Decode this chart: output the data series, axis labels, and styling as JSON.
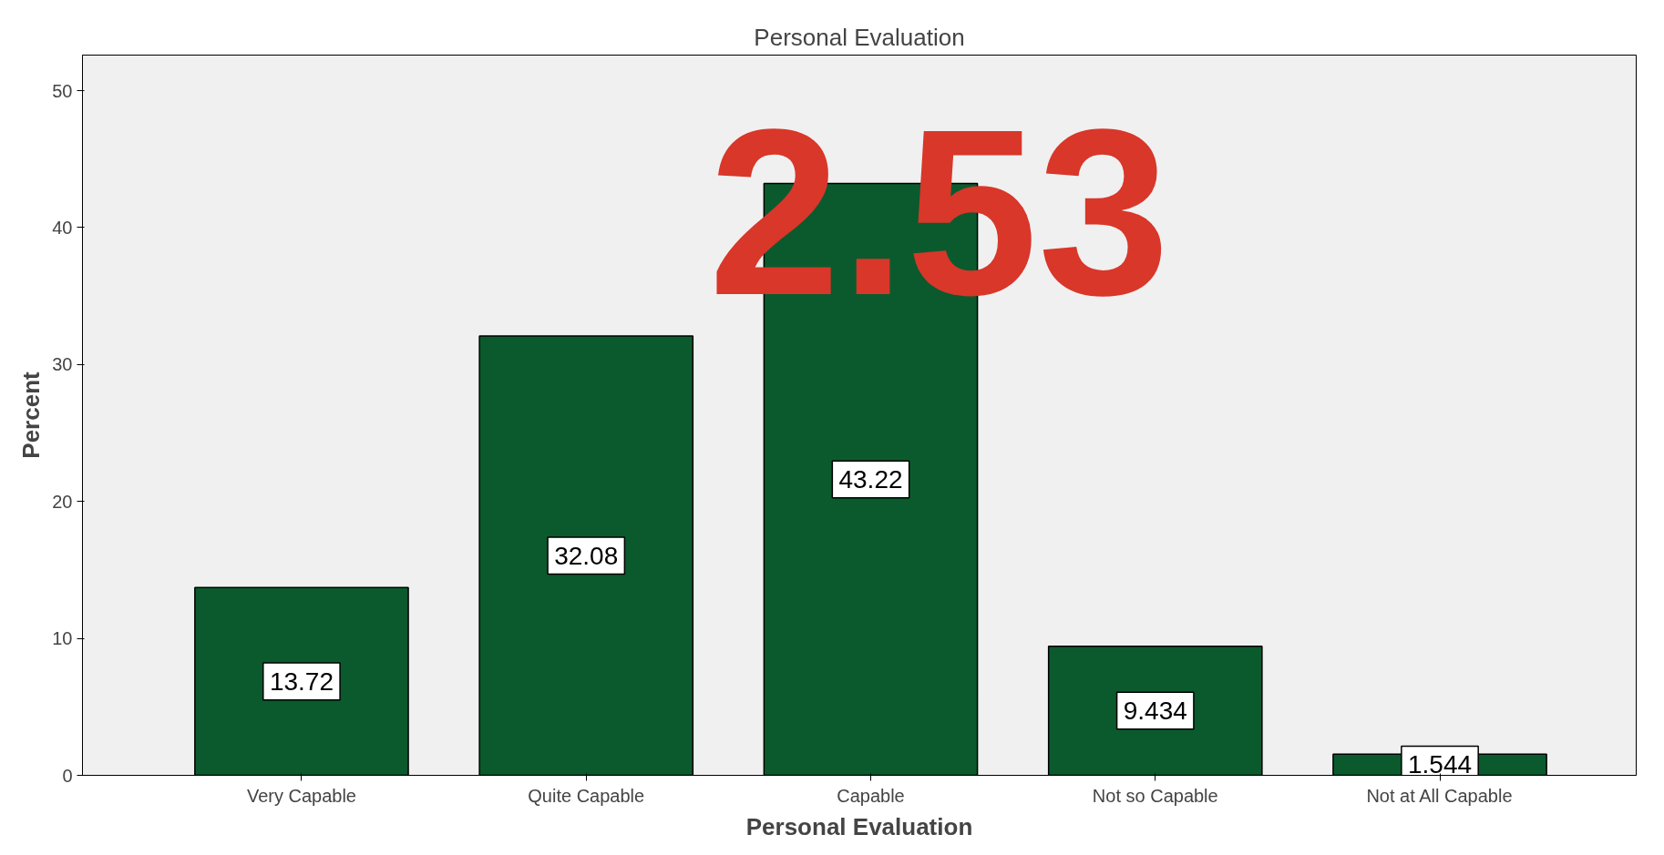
{
  "chart_data": {
    "type": "bar",
    "title": "Personal Evaluation",
    "xlabel": "Personal Evaluation",
    "ylabel": "Percent",
    "categories": [
      "Very Capable",
      "Quite Capable",
      "Capable",
      "Not so Capable",
      "Not at All Capable"
    ],
    "values": [
      13.72,
      32.08,
      43.22,
      9.434,
      1.544
    ],
    "color": "#0b5a2d",
    "ylim": [
      0,
      52.6
    ],
    "yticks": [
      0,
      10,
      20,
      30,
      40,
      50
    ],
    "grid": false,
    "data_labels": true,
    "annotations": [
      "2.53"
    ]
  }
}
